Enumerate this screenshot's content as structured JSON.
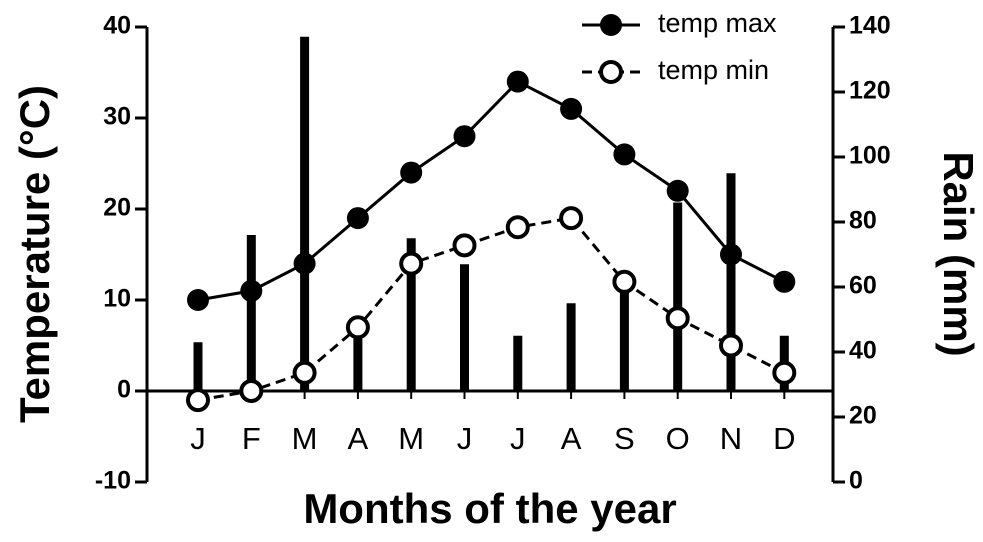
{
  "chart_data": {
    "type": "combo",
    "xlabel": "Months of the year",
    "ylabel": "Temperature (°C)",
    "y2label": "Rain (mm)",
    "categories": [
      "J",
      "F",
      "M",
      "A",
      "M",
      "J",
      "J",
      "A",
      "S",
      "O",
      "N",
      "D"
    ],
    "ylim": [
      -10,
      40
    ],
    "yticks": [
      -10,
      0,
      10,
      20,
      30,
      40
    ],
    "y2lim": [
      0,
      140
    ],
    "y2ticks": [
      0,
      20,
      40,
      60,
      80,
      100,
      120,
      140
    ],
    "legend": "upper right",
    "bars": {
      "type": "bar",
      "axis": "y2",
      "color": "#000000",
      "values": [
        43,
        76,
        137,
        45,
        75,
        67,
        45,
        55,
        62,
        86,
        95,
        45
      ]
    },
    "series": [
      {
        "name": "temp max",
        "type": "line",
        "style": "solid",
        "marker": "filled",
        "color": "#000000",
        "values": [
          10,
          11,
          14,
          19,
          24,
          28,
          34,
          31,
          26,
          22,
          15,
          12
        ]
      },
      {
        "name": "temp min",
        "type": "line",
        "style": "dashed",
        "marker": "open",
        "color": "#000000",
        "values": [
          -1,
          0,
          2,
          7,
          14,
          16,
          18,
          19,
          12,
          8,
          5,
          2
        ]
      }
    ]
  }
}
